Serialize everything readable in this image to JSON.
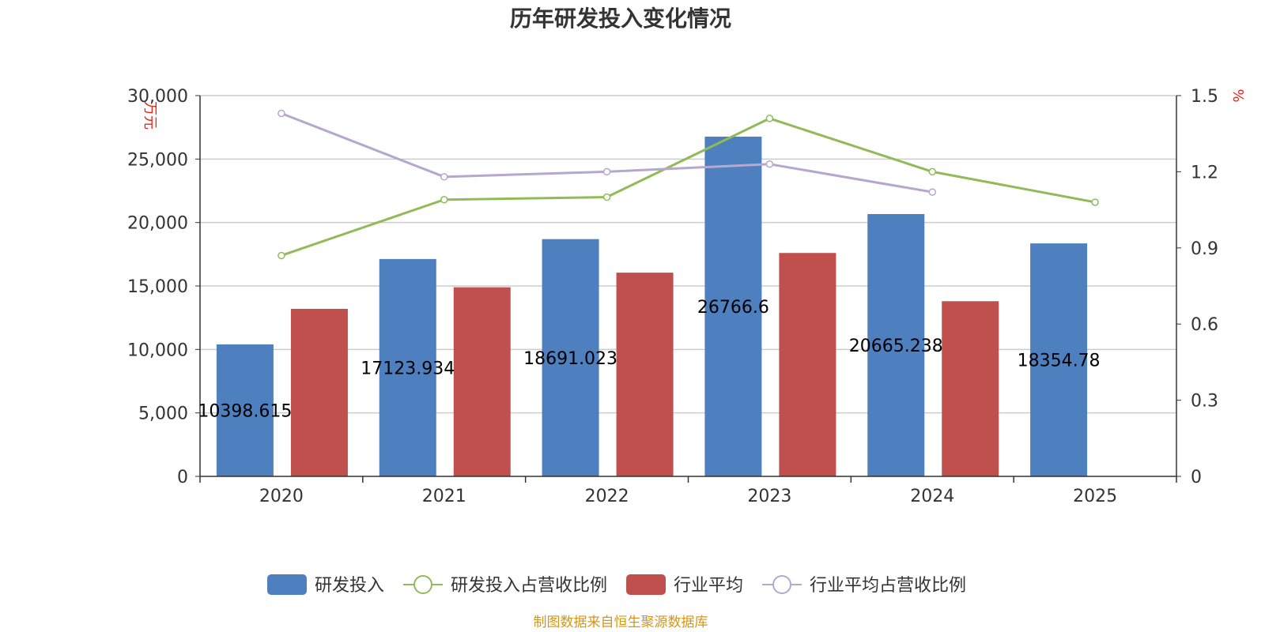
{
  "chart_data": {
    "type": "bar",
    "title": "历年研发投入变化情况",
    "categories": [
      "2020",
      "2021",
      "2022",
      "2023",
      "2024",
      "2025"
    ],
    "y_left": {
      "unit": "万元",
      "min": 0,
      "max": 30000,
      "ticks": [
        0,
        5000,
        10000,
        15000,
        20000,
        25000,
        30000
      ],
      "tick_labels": [
        "0",
        "5,000",
        "10,000",
        "15,000",
        "20,000",
        "25,000",
        "30,000"
      ]
    },
    "y_right": {
      "unit": "%",
      "min": 0,
      "max": 1.5,
      "ticks": [
        0,
        0.3,
        0.6,
        0.9,
        1.2,
        1.5
      ],
      "tick_labels": [
        "0",
        "0.3",
        "0.6",
        "0.9",
        "1.2",
        "1.5"
      ]
    },
    "series": [
      {
        "name": "研发投入",
        "type": "bar",
        "axis": "left",
        "color": "#4e7fbe",
        "values": [
          10398.615,
          17123.934,
          18691.023,
          26766.6,
          20665.238,
          18354.78
        ],
        "labels": [
          "10398.615",
          "17123.934",
          "18691.023",
          "26766.6",
          "20665.238",
          "18354.78"
        ]
      },
      {
        "name": "研发投入占营收比例",
        "type": "line",
        "axis": "right",
        "color": "#91bb58",
        "values": [
          0.87,
          1.09,
          1.1,
          1.41,
          1.2,
          1.08
        ]
      },
      {
        "name": "行业平均",
        "type": "bar",
        "axis": "left",
        "color": "#c0504d",
        "values": [
          13200,
          14900,
          16050,
          17600,
          13800,
          null
        ]
      },
      {
        "name": "行业平均占营收比例",
        "type": "line",
        "axis": "right",
        "color": "#b6a7cf",
        "values": [
          1.43,
          1.18,
          1.2,
          1.23,
          1.12,
          null
        ]
      }
    ],
    "legend_position": "bottom-center",
    "grid": true
  },
  "source_text": "制图数据来自恒生聚源数据库",
  "colors": {
    "source": "#d4961a",
    "axis": "#333333",
    "grid": "#cccccc",
    "unit": "#e8231a"
  }
}
